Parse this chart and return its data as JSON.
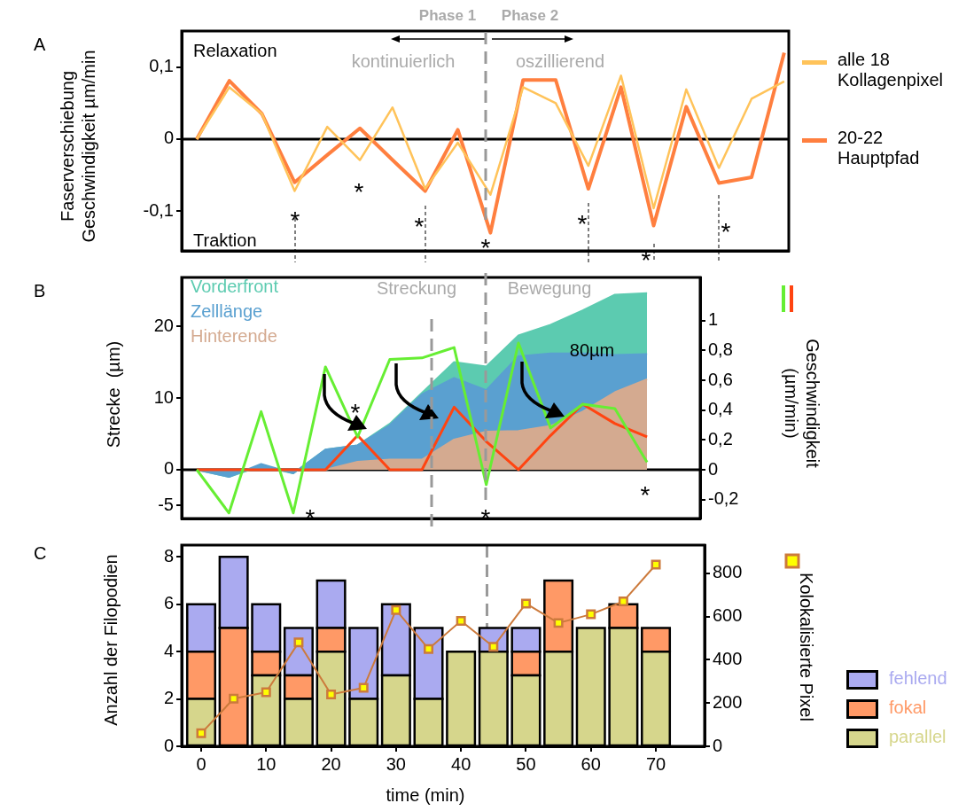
{
  "chart_data": [
    {
      "type": "line",
      "ylabel": "Faserverschiebung Geschwindigkeit µm/min",
      "categories": [
        null,
        null,
        null,
        null,
        null,
        null,
        null,
        null,
        null,
        null,
        null,
        null,
        null,
        null,
        null,
        null,
        null,
        null,
        null
      ],
      "series": [
        {
          "name": "alle 18 Kollagenpixel",
          "color": "#ffc35a",
          "values": [
            0,
            0.072,
            0.035,
            -0.072,
            0.017,
            -0.029,
            0.044,
            -0.069,
            -0.005,
            -0.077,
            0.072,
            0.05,
            -0.037,
            0.088,
            -0.096,
            0.069,
            -0.04,
            0.056,
            0.08
          ]
        },
        {
          "name": "20-22 Hauptpfad",
          "color": "#ff7f3f",
          "values": [
            0,
            0.081,
            0.035,
            -0.06,
            -0.022,
            0.015,
            -0.029,
            -0.072,
            0.013,
            -0.13,
            0.082,
            0.082,
            -0.069,
            0.072,
            -0.12,
            0.045,
            -0.061,
            -0.053,
            0.12
          ]
        }
      ],
      "ylim": [
        -0.155,
        0.15
      ],
      "yticks": [
        {
          "value": -0.1,
          "label": "-0,1"
        },
        0,
        {
          "value": 0.1,
          "label": "0,1"
        }
      ],
      "legend": "right",
      "ref_lines": [
        {
          "axis": "y",
          "value": 0,
          "color": "#000000"
        }
      ],
      "annotations": [
        "A",
        "Relaxation",
        "Traktion",
        "Phase 1",
        "Phase 2",
        "kontinuierlich",
        "oszillierend",
        "*",
        "*",
        "*",
        "*",
        "*",
        "*",
        "*"
      ]
    },
    {
      "type": "area",
      "ylabel": "Strecke  (µm)",
      "y2label": "Geschwindigkeit (µm/min)",
      "categories": [
        null,
        null,
        null,
        null,
        null,
        null,
        null,
        null,
        null,
        null,
        null,
        null,
        null,
        null,
        null
      ],
      "series": [
        {
          "name": "Vorderfront",
          "color": "#5ccbb0",
          "values": [
            0,
            -1,
            0.5,
            -0.5,
            2.8,
            3.4,
            6.4,
            10.7,
            15,
            14.4,
            18.7,
            20.2,
            22.2,
            24.4,
            24.6
          ]
        },
        {
          "name": "Zelllänge",
          "color": "#5aa0d0",
          "values": [
            0,
            -1,
            0.8,
            -0.5,
            2.8,
            3.4,
            6.2,
            10.5,
            12.8,
            11.1,
            15.8,
            16.2,
            16.2,
            16,
            16.1
          ]
        },
        {
          "name": "Hinterende",
          "color": "#d4aa90",
          "values": [
            0,
            0,
            0,
            0,
            0,
            1.1,
            1.4,
            1.4,
            4.2,
            5.3,
            5.4,
            6.1,
            8.1,
            10.8,
            12.6
          ]
        },
        {
          "type": "line",
          "axis": "y2",
          "color": "#66ee33",
          "values": [
            0,
            -0.29,
            0.39,
            -0.29,
            0.69,
            0.22,
            0.74,
            0.75,
            0.82,
            -0.1,
            0.85,
            0.28,
            0.44,
            0.41,
            0.05
          ]
        },
        {
          "type": "line",
          "axis": "y2",
          "color": "#ff4411",
          "values": [
            0,
            0,
            0,
            0,
            0,
            0.23,
            0,
            0,
            0.42,
            0.19,
            0,
            0.23,
            0.44,
            0.31,
            0.22
          ]
        }
      ],
      "ylim": [
        -6.8,
        26.8
      ],
      "yticks": [
        -5,
        0,
        10,
        20
      ],
      "y2lim": [
        -0.327,
        1.29
      ],
      "y2ticks": [
        {
          "value": -0.2,
          "label": "-0,2"
        },
        0,
        {
          "value": 0.2,
          "label": "0,2"
        },
        {
          "value": 0.4,
          "label": "0,4"
        },
        {
          "value": 0.6,
          "label": "0,6"
        },
        {
          "value": 0.8,
          "label": "0,8"
        },
        1
      ],
      "legend": "top left",
      "ref_lines": [
        {
          "axis": "y",
          "value": 0,
          "color": "#000000"
        }
      ],
      "annotations": [
        "B",
        "Streckung",
        "Bewegung",
        "80µm",
        "*",
        "*",
        "*",
        "*"
      ]
    },
    {
      "type": "bar",
      "xlabel": "time (min)",
      "ylabel": "Anzahl der Filopodien",
      "y2label": "Kolokalisierte Pixel",
      "stacked": true,
      "x": [
        0,
        5,
        10,
        15,
        20,
        25,
        30,
        35,
        40,
        45,
        50,
        55,
        60,
        65,
        70
      ],
      "series": [
        {
          "name": "parallel",
          "color": "#d6d68c",
          "values": [
            2,
            0,
            3,
            2,
            4,
            2,
            3,
            2,
            4,
            4,
            3,
            4,
            5,
            5,
            4
          ]
        },
        {
          "name": "fokal",
          "color": "#ff9966",
          "values": [
            2,
            5,
            1,
            1,
            1,
            0,
            0,
            0,
            0,
            0,
            1,
            3,
            0,
            1,
            1
          ]
        },
        {
          "name": "fehlend",
          "color": "#aaaaf0",
          "values": [
            2,
            3,
            2,
            2,
            2,
            3,
            3,
            3,
            0,
            1,
            1,
            0,
            0,
            0,
            0
          ]
        },
        {
          "type": "line",
          "axis": "y2",
          "color": "#cc7a3c",
          "values": [
            60,
            220,
            250,
            480,
            240,
            270,
            630,
            450,
            580,
            460,
            660,
            570,
            610,
            670,
            840
          ]
        }
      ],
      "xlim": [
        -3,
        77.5
      ],
      "xticks": [
        0,
        10,
        20,
        30,
        40,
        50,
        60,
        70
      ],
      "ylim": [
        0,
        8.5
      ],
      "yticks": [
        0,
        2,
        4,
        6,
        8
      ],
      "y2lim": [
        0,
        930
      ],
      "y2ticks": [
        0,
        200,
        400,
        600,
        800
      ],
      "marker": "square",
      "legend": "bottom right",
      "ref_lines": [
        {
          "axis": "x",
          "value": 44,
          "color": "#999999",
          "line_style": "dashed"
        }
      ],
      "annotations": [
        "C"
      ]
    }
  ]
}
